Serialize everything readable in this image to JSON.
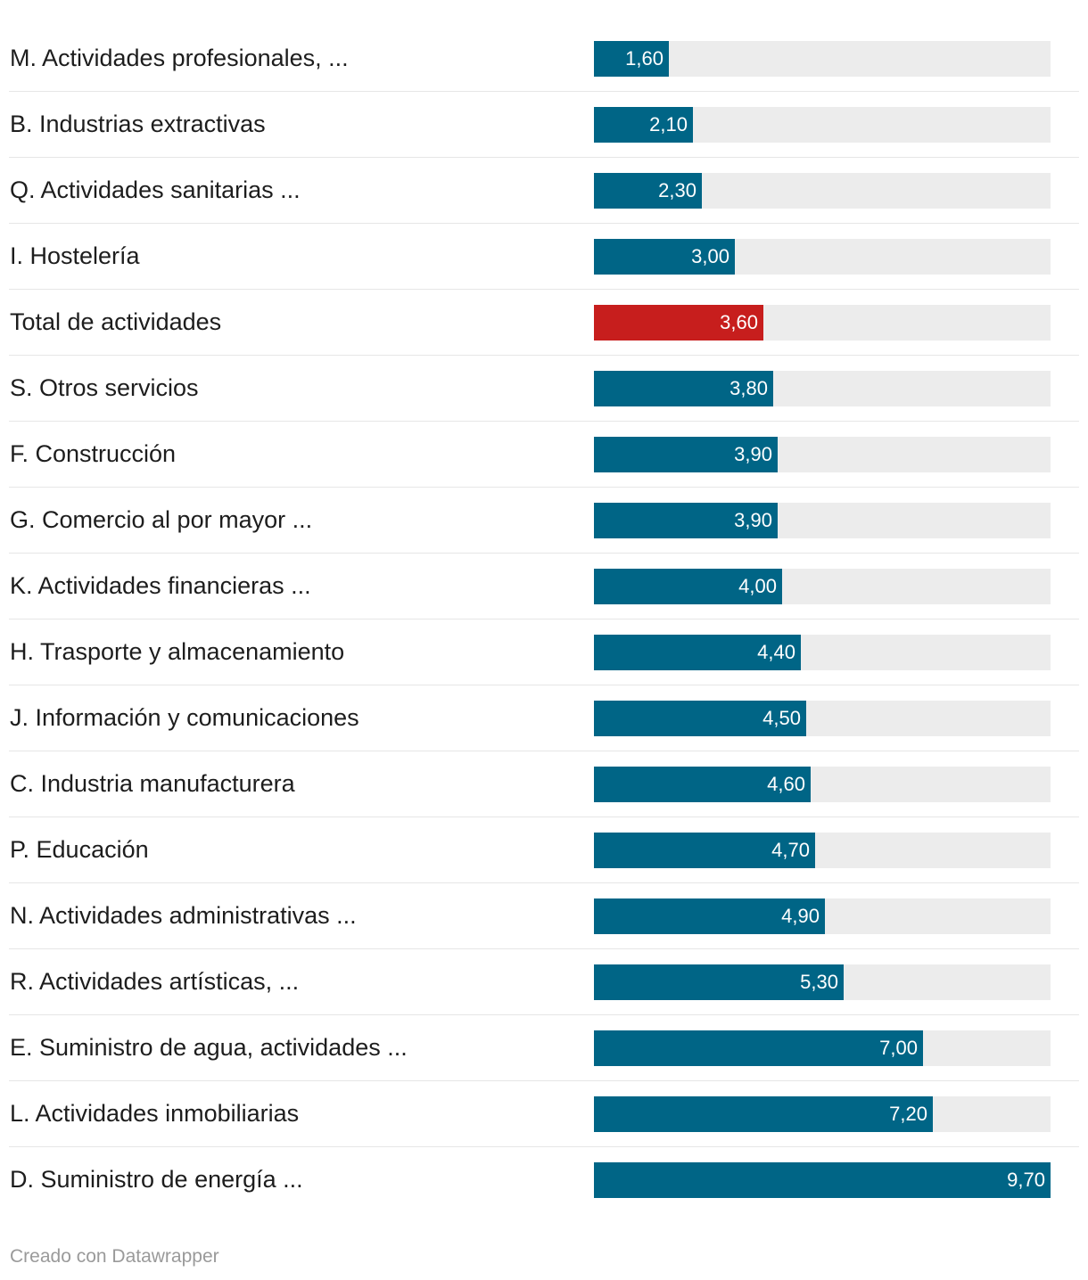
{
  "chart_data": {
    "type": "bar",
    "orientation": "horizontal",
    "categories": [
      "M. Actividades profesionales, ...",
      "B. Industrias extractivas",
      "Q. Actividades sanitarias ...",
      "I. Hostelería",
      "Total de actividades",
      "S. Otros servicios",
      "F. Construcción",
      "G. Comercio al por mayor ...",
      "K. Actividades financieras ...",
      "H. Trasporte y almacenamiento",
      "J. Información y comunicaciones",
      "C. Industria manufacturera",
      "P. Educación",
      "N. Actividades administrativas ...",
      "R. Actividades artísticas, ...",
      "E. Suministro de agua, actividades ...",
      "L. Actividades inmobiliarias",
      "D. Suministro de energía ..."
    ],
    "values": [
      1.6,
      2.1,
      2.3,
      3.0,
      3.6,
      3.8,
      3.9,
      3.9,
      4.0,
      4.4,
      4.5,
      4.6,
      4.7,
      4.9,
      5.3,
      7.0,
      7.2,
      9.7
    ],
    "value_labels": [
      "1,60",
      "2,10",
      "2,30",
      "3,00",
      "3,60",
      "3,80",
      "3,90",
      "3,90",
      "4,00",
      "4,40",
      "4,50",
      "4,60",
      "4,70",
      "4,90",
      "5,30",
      "7,00",
      "7,20",
      "9,70"
    ],
    "highlight": [
      "Total de actividades"
    ],
    "xlim": [
      0,
      9.7
    ],
    "colors": {
      "bar": "#006586",
      "highlight": "#c71e1d",
      "track": "#ececec"
    },
    "title": "",
    "xlabel": "",
    "ylabel": ""
  },
  "footer": {
    "credit": "Creado con Datawrapper"
  }
}
